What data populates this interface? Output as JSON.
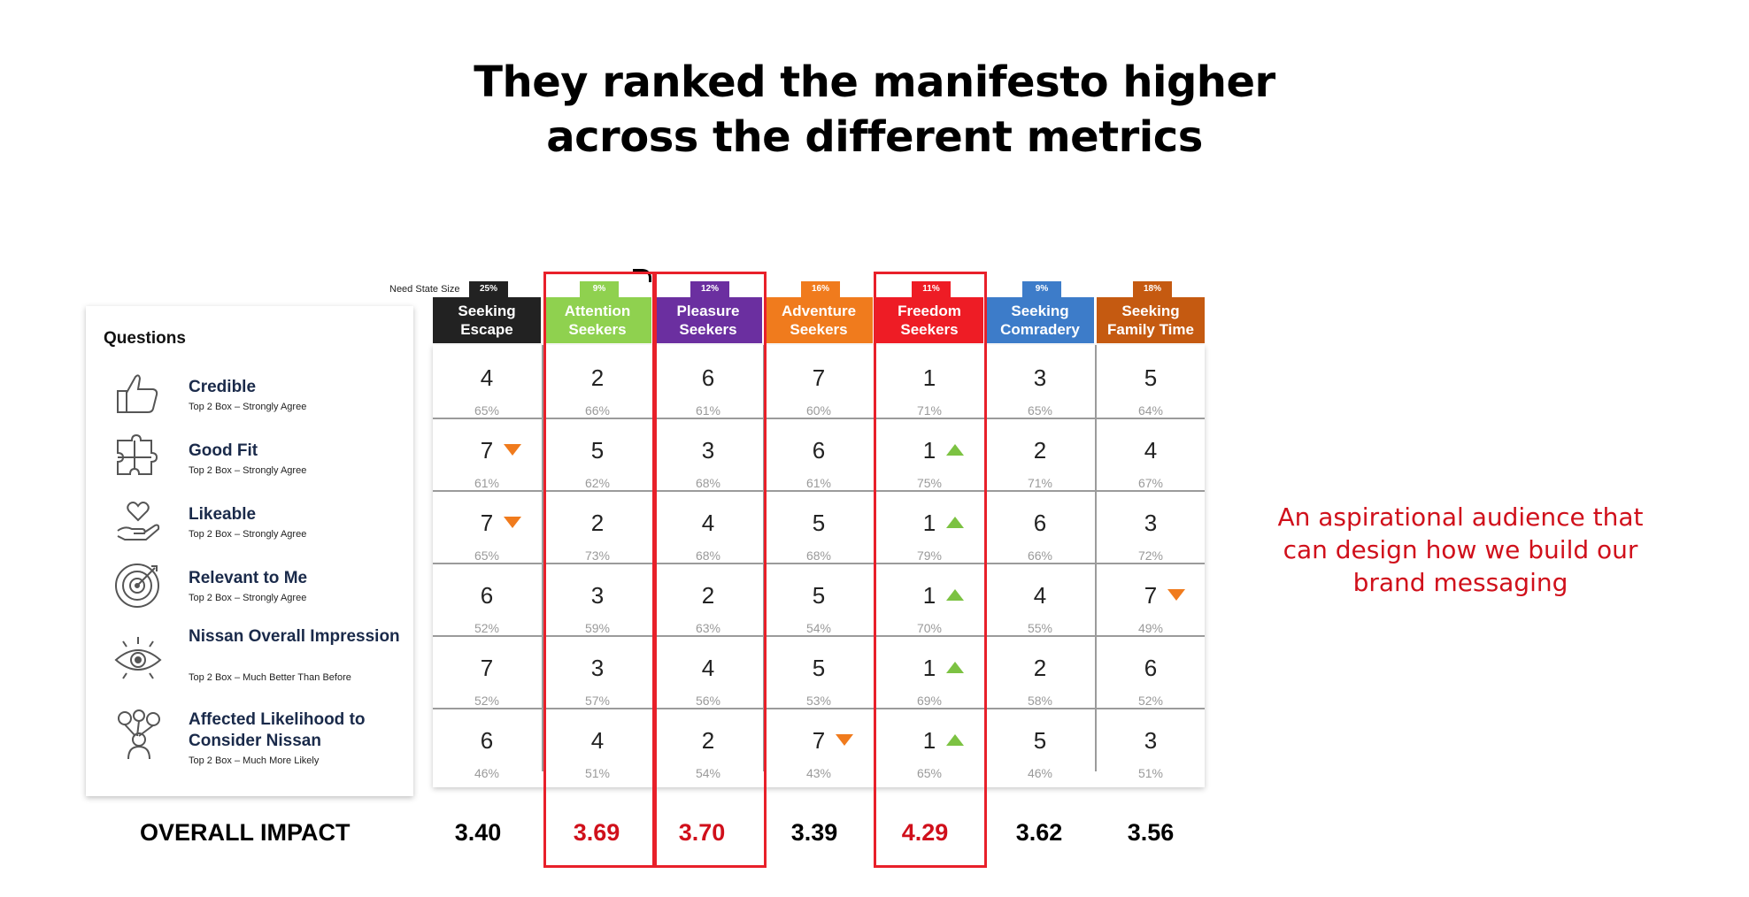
{
  "title": {
    "line1": "They ranked the manifesto higher",
    "line2": "across the different metrics"
  },
  "questions_header": "Questions",
  "need_state_label": "Need State Size",
  "questions": [
    {
      "name": "Credible",
      "sub": "Top 2 Box – Strongly Agree",
      "icon": "thumbs-up-icon"
    },
    {
      "name": "Good Fit",
      "sub": "Top 2 Box – Strongly Agree",
      "icon": "puzzle-icon"
    },
    {
      "name": "Likeable",
      "sub": "Top 2 Box – Strongly Agree",
      "icon": "heart-hand-icon"
    },
    {
      "name": "Relevant to Me",
      "sub": "Top 2 Box – Strongly Agree",
      "icon": "target-icon"
    },
    {
      "name": "Nissan Overall Impression",
      "sub": "Top 2 Box – Much Better Than Before",
      "icon": "eye-icon"
    },
    {
      "name": "Affected Likelihood to Consider Nissan",
      "sub": "Top 2 Box – Much More Likely",
      "icon": "person-balloons-icon"
    }
  ],
  "segments": [
    {
      "line1": "Seeking",
      "line2": "Escape",
      "size": "25%",
      "color": "#222222",
      "impact": "3.40",
      "highlight": false
    },
    {
      "line1": "Attention",
      "line2": "Seekers",
      "size": "9%",
      "color": "#8fd14f",
      "impact": "3.69",
      "highlight": true
    },
    {
      "line1": "Pleasure",
      "line2": "Seekers",
      "size": "12%",
      "color": "#6b2fa0",
      "impact": "3.70",
      "highlight": true
    },
    {
      "line1": "Adventure",
      "line2": "Seekers",
      "size": "16%",
      "color": "#f07b1d",
      "impact": "3.39",
      "highlight": false
    },
    {
      "line1": "Freedom",
      "line2": "Seekers",
      "size": "11%",
      "color": "#ee1c25",
      "impact": "4.29",
      "highlight": true
    },
    {
      "line1": "Seeking",
      "line2": "Comradery",
      "size": "9%",
      "color": "#3d7cc9",
      "impact": "3.62",
      "highlight": false
    },
    {
      "line1": "Seeking",
      "line2": "Family Time",
      "size": "18%",
      "color": "#c55a11",
      "impact": "3.56",
      "highlight": false
    }
  ],
  "rows": [
    [
      [
        "4",
        "65%",
        ""
      ],
      [
        "2",
        "66%",
        ""
      ],
      [
        "6",
        "61%",
        ""
      ],
      [
        "7",
        "60%",
        ""
      ],
      [
        "1",
        "71%",
        ""
      ],
      [
        "3",
        "65%",
        ""
      ],
      [
        "5",
        "64%",
        ""
      ]
    ],
    [
      [
        "7",
        "61%",
        "down"
      ],
      [
        "5",
        "62%",
        ""
      ],
      [
        "3",
        "68%",
        ""
      ],
      [
        "6",
        "61%",
        ""
      ],
      [
        "1",
        "75%",
        "up"
      ],
      [
        "2",
        "71%",
        ""
      ],
      [
        "4",
        "67%",
        ""
      ]
    ],
    [
      [
        "7",
        "65%",
        "down"
      ],
      [
        "2",
        "73%",
        ""
      ],
      [
        "4",
        "68%",
        ""
      ],
      [
        "5",
        "68%",
        ""
      ],
      [
        "1",
        "79%",
        "up"
      ],
      [
        "6",
        "66%",
        ""
      ],
      [
        "3",
        "72%",
        ""
      ]
    ],
    [
      [
        "6",
        "52%",
        ""
      ],
      [
        "3",
        "59%",
        ""
      ],
      [
        "2",
        "63%",
        ""
      ],
      [
        "5",
        "54%",
        ""
      ],
      [
        "1",
        "70%",
        "up"
      ],
      [
        "4",
        "55%",
        ""
      ],
      [
        "7",
        "49%",
        "down"
      ]
    ],
    [
      [
        "7",
        "52%",
        ""
      ],
      [
        "3",
        "57%",
        ""
      ],
      [
        "4",
        "56%",
        ""
      ],
      [
        "5",
        "53%",
        ""
      ],
      [
        "1",
        "69%",
        "up"
      ],
      [
        "2",
        "58%",
        ""
      ],
      [
        "6",
        "52%",
        ""
      ]
    ],
    [
      [
        "6",
        "46%",
        ""
      ],
      [
        "4",
        "51%",
        ""
      ],
      [
        "2",
        "54%",
        ""
      ],
      [
        "7",
        "43%",
        "down"
      ],
      [
        "1",
        "65%",
        "up"
      ],
      [
        "5",
        "46%",
        ""
      ],
      [
        "3",
        "51%",
        ""
      ]
    ]
  ],
  "overall_impact_label": "OVERALL IMPACT",
  "impact_highlight_color": "#d0101b",
  "side_note": {
    "line1": "An aspirational audience that",
    "line2": "can design how we build our",
    "line3": "brand messaging"
  }
}
